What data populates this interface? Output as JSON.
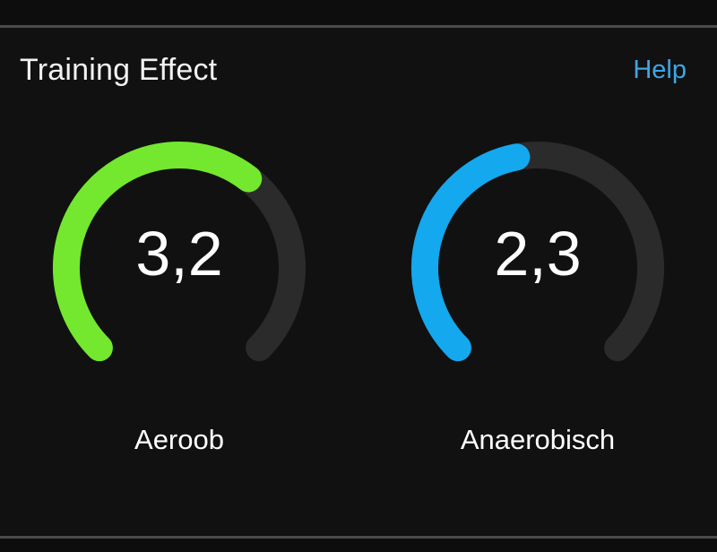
{
  "header": {
    "title": "Training Effect",
    "help_label": "Help"
  },
  "gauges": [
    {
      "id": "aerobic",
      "value_text": "3,2",
      "value": 3.2,
      "max": 5.0,
      "label": "Aeroob",
      "color": "#73e82e",
      "track_color": "#2b2b2b"
    },
    {
      "id": "anaerobic",
      "value_text": "2,3",
      "value": 2.3,
      "max": 5.0,
      "label": "Anaerobisch",
      "color": "#14a8ee",
      "track_color": "#2b2b2b"
    }
  ]
}
